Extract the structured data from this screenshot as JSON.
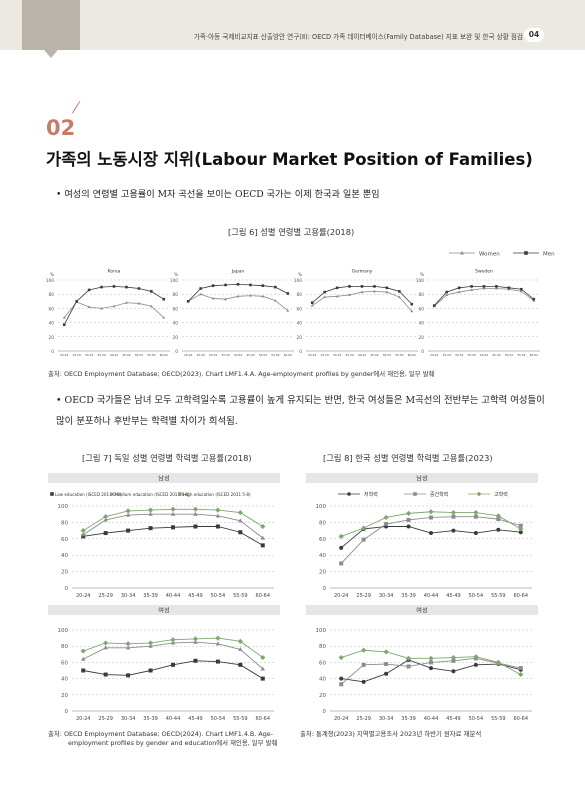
{
  "header": {
    "running_title": "가족·아동 국제비교지표 산출방안 연구(Ⅱ): OECD 가족 데이터베이스(Family Database) 지표 보완 및 한국 상황 점검",
    "page_number": "04"
  },
  "section": {
    "number": "02",
    "title": "가족의 노동시장 지위(Labour Market Position of Families)"
  },
  "bullets": [
    "• 여성의 연령별 고용률이 M자 곡선을 보이는 OECD 국가는 이제 한국과 일본 뿐임",
    "• OECD 국가들은 남녀 모두 고학력일수록 고용률이 높게 유지되는 반면, 한국 여성들은 M곡선의 전반부는 고학력 여성들이 많이 분포하나 후반부는 학력별 차이가 희석됨."
  ],
  "figures": {
    "fig6": {
      "title": "[그림 6] 성별 연령별 고용률(2018)",
      "source": "출처: OECD Employment Database; OECD(2023). Chart LMF1.4.A. Age-employment profiles by gender에서 재인용, 일부 발췌"
    },
    "fig7": {
      "title": "[그림 7] 독일 성별 연령별 학력별 고용률(2018)",
      "source_line1": "출처: OECD Employment Database; OECD(2024). Chart LMF1.4.B. Age-",
      "source_line2": "employment profiles by gender and education에서 재인용, 일부 발췌"
    },
    "fig8": {
      "title": "[그림 8] 한국 성별 연령별 학력별 고용률(2023)",
      "source": "출처: 통계청(2023) 지역별고용조사 2023년 하반기 원자료 재분석"
    }
  },
  "colors": {
    "accent": "#c87b68",
    "dark_series": "#3a3a3a",
    "mid_series": "#8c8c8c",
    "green_series": "#7ea86f",
    "panel_header": "#e6e6e6"
  },
  "chart_data": [
    {
      "id": "fig6",
      "type": "line",
      "legend": [
        "Women",
        "Men"
      ],
      "legend_position": "top-right",
      "x": [
        "20-24",
        "25-29",
        "30-34",
        "35-39",
        "40-44",
        "45-49",
        "50-54",
        "55-59",
        "60-64"
      ],
      "ylim": [
        0,
        100
      ],
      "yticks": [
        0,
        20,
        40,
        60,
        80,
        100
      ],
      "y_unit": "%",
      "panels": [
        {
          "name": "Korea",
          "series": [
            {
              "name": "Women",
              "values": [
                47,
                69,
                62,
                60,
                63,
                68,
                67,
                63,
                47
              ]
            },
            {
              "name": "Men",
              "values": [
                37,
                70,
                86,
                90,
                91,
                90,
                88,
                84,
                73
              ]
            }
          ]
        },
        {
          "name": "Japan",
          "series": [
            {
              "name": "Women",
              "values": [
                70,
                80,
                74,
                73,
                77,
                78,
                77,
                71,
                57
              ]
            },
            {
              "name": "Men",
              "values": [
                70,
                88,
                92,
                93,
                94,
                93,
                92,
                90,
                81
              ]
            }
          ]
        },
        {
          "name": "Germany",
          "series": [
            {
              "name": "Women",
              "values": [
                64,
                76,
                77,
                79,
                83,
                84,
                83,
                76,
                56
              ]
            },
            {
              "name": "Men",
              "values": [
                68,
                83,
                89,
                91,
                91,
                91,
                89,
                84,
                66
              ]
            }
          ]
        },
        {
          "name": "Sweden",
          "series": [
            {
              "name": "Women",
              "values": [
                63,
                79,
                83,
                86,
                88,
                88,
                87,
                84,
                71
              ]
            },
            {
              "name": "Men",
              "values": [
                64,
                83,
                89,
                91,
                91,
                91,
                89,
                87,
                73
              ]
            }
          ]
        }
      ]
    },
    {
      "id": "fig7",
      "type": "line",
      "legend": [
        "Low education (ISCED 2011 0-2)",
        "Medium education (ISCED 2011 3-4)",
        "High education (ISCED 2011 5-8)"
      ],
      "legend_position": "top",
      "x": [
        "20-24",
        "25-29",
        "30-34",
        "35-39",
        "40-44",
        "45-49",
        "50-54",
        "55-59",
        "60-64"
      ],
      "ylim": [
        0,
        100
      ],
      "yticks": [
        0,
        20,
        40,
        60,
        80,
        100
      ],
      "panels": [
        {
          "name": "남성",
          "series": [
            {
              "name": "Low education (ISCED 2011 0-2)",
              "values": [
                63,
                67,
                70,
                73,
                74,
                75,
                75,
                68,
                52
              ]
            },
            {
              "name": "Medium education (ISCED 2011 3-4)",
              "values": [
                65,
                83,
                89,
                90,
                90,
                90,
                88,
                82,
                61
              ]
            },
            {
              "name": "High education (ISCED 2011 5-8)",
              "values": [
                70,
                87,
                94,
                95,
                96,
                96,
                95,
                92,
                75
              ]
            }
          ]
        },
        {
          "name": "여성",
          "series": [
            {
              "name": "Low education (ISCED 2011 0-2)",
              "values": [
                50,
                45,
                44,
                50,
                57,
                62,
                61,
                57,
                40
              ]
            },
            {
              "name": "Medium education (ISCED 2011 3-4)",
              "values": [
                64,
                78,
                78,
                80,
                84,
                85,
                83,
                76,
                52
              ]
            },
            {
              "name": "High education (ISCED 2011 5-8)",
              "values": [
                74,
                84,
                83,
                84,
                88,
                89,
                90,
                86,
                66
              ]
            }
          ]
        }
      ]
    },
    {
      "id": "fig8",
      "type": "line",
      "legend": [
        "저학력",
        "중간학력",
        "고학력"
      ],
      "legend_position": "top",
      "x": [
        "20-24",
        "25-29",
        "30-34",
        "35-39",
        "40-44",
        "45-49",
        "50-54",
        "55-59",
        "60-64"
      ],
      "ylim": [
        0,
        100
      ],
      "yticks": [
        0,
        20,
        40,
        60,
        80,
        100
      ],
      "panels": [
        {
          "name": "남성",
          "series": [
            {
              "name": "저학력",
              "values": [
                49,
                72,
                75,
                75,
                67,
                70,
                67,
                71,
                68
              ]
            },
            {
              "name": "중간학력",
              "values": [
                30,
                59,
                78,
                83,
                86,
                87,
                87,
                84,
                76
              ]
            },
            {
              "name": "고학력",
              "values": [
                63,
                73,
                86,
                91,
                93,
                92,
                92,
                88,
                72
              ]
            }
          ]
        },
        {
          "name": "여성",
          "series": [
            {
              "name": "저학력",
              "values": [
                40,
                36,
                46,
                63,
                53,
                49,
                57,
                58,
                51
              ]
            },
            {
              "name": "중간학력",
              "values": [
                33,
                57,
                58,
                55,
                60,
                62,
                65,
                59,
                53
              ]
            },
            {
              "name": "고학력",
              "values": [
                66,
                75,
                73,
                65,
                65,
                66,
                67,
                60,
                45
              ]
            }
          ]
        }
      ]
    }
  ]
}
